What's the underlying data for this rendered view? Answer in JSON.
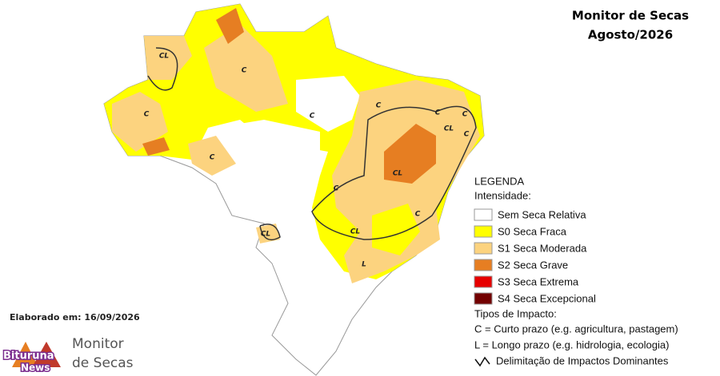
{
  "header": {
    "title": "Monitor de Secas",
    "subtitle": "Agosto/2026"
  },
  "map": {
    "labels": [
      "CL",
      "C",
      "C",
      "C",
      "C",
      "C",
      "C",
      "CL",
      "C",
      "C",
      "CL",
      "C",
      "C",
      "CL",
      "L",
      "CL"
    ]
  },
  "legend": {
    "title": "LEGENDA",
    "intensity_title": "Intensidade:",
    "items": [
      {
        "label": "Sem Seca Relativa",
        "color": "#ffffff"
      },
      {
        "label": "S0 Seca Fraca",
        "color": "#ffff00"
      },
      {
        "label": "S1 Seca Moderada",
        "color": "#fcd37f"
      },
      {
        "label": "S2 Seca Grave",
        "color": "#e67e22"
      },
      {
        "label": "S3 Seca Extrema",
        "color": "#e60000"
      },
      {
        "label": "S4 Seca Excepcional",
        "color": "#730000"
      }
    ],
    "impact_title": "Tipos de Impacto:",
    "impact_items": [
      "C = Curto prazo (e.g. agricultura, pastagem)",
      "L = Longo prazo (e.g. hidrologia, ecologia)",
      "Delimitação de Impactos Dominantes"
    ]
  },
  "footer": {
    "created": "Elaborado em: 16/09/2026",
    "logo_line1": "Monitor",
    "logo_line2": "de Secas",
    "watermark_line1": "Bituruna",
    "watermark_line2": "News"
  }
}
